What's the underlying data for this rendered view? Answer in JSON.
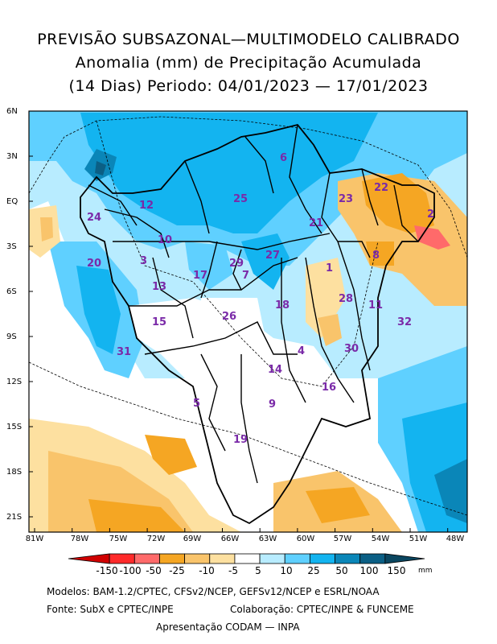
{
  "title": {
    "line1": "PREVISÃO SUBSAZONAL—MULTIMODELO CALIBRADO",
    "line2": "Anomalia (mm) de Precipitação Acumulada",
    "line3": "(14 Dias) Periodo: 04/01/2023 — 17/01/2023"
  },
  "axes": {
    "lat_labels": [
      "6N",
      "3N",
      "EQ",
      "3S",
      "6S",
      "9S",
      "12S",
      "15S",
      "18S",
      "21S"
    ],
    "lon_labels": [
      "81W",
      "78W",
      "75W",
      "72W",
      "69W",
      "66W",
      "63W",
      "60W",
      "57W",
      "54W",
      "51W",
      "48W"
    ]
  },
  "basins": [
    "1",
    "2",
    "3",
    "4",
    "5",
    "6",
    "7",
    "8",
    "9",
    "10",
    "11",
    "12",
    "13",
    "14",
    "15",
    "16",
    "17",
    "18",
    "19",
    "20",
    "21",
    "22",
    "23",
    "24",
    "25",
    "26",
    "27",
    "28",
    "29",
    "30",
    "31",
    "32"
  ],
  "colorbar": {
    "labels": [
      "-150",
      "-100",
      "-50",
      "-25",
      "-10",
      "-5",
      "5",
      "10",
      "25",
      "50",
      "100",
      "150"
    ],
    "colors": [
      "#d00000",
      "#ff2a2a",
      "#ff6a6a",
      "#f5a623",
      "#f9c46b",
      "#fde0a0",
      "#ffffff",
      "#b8ecff",
      "#5fd0ff",
      "#13b4f0",
      "#0a86b8",
      "#0b5f85",
      "#0a4660"
    ],
    "units": "mm"
  },
  "footer": {
    "line1": "Modelos: BAM-1.2/CPTEC, CFSv2/NCEP, GEFSv12/NCEP e ESRL/NOAA",
    "line2a": "Fonte: SubX e CPTEC/INPE",
    "line2b": "Colaboração: CPTEC/INPE & FUNCEME",
    "line3": "Apresentação CODAM — INPA"
  }
}
